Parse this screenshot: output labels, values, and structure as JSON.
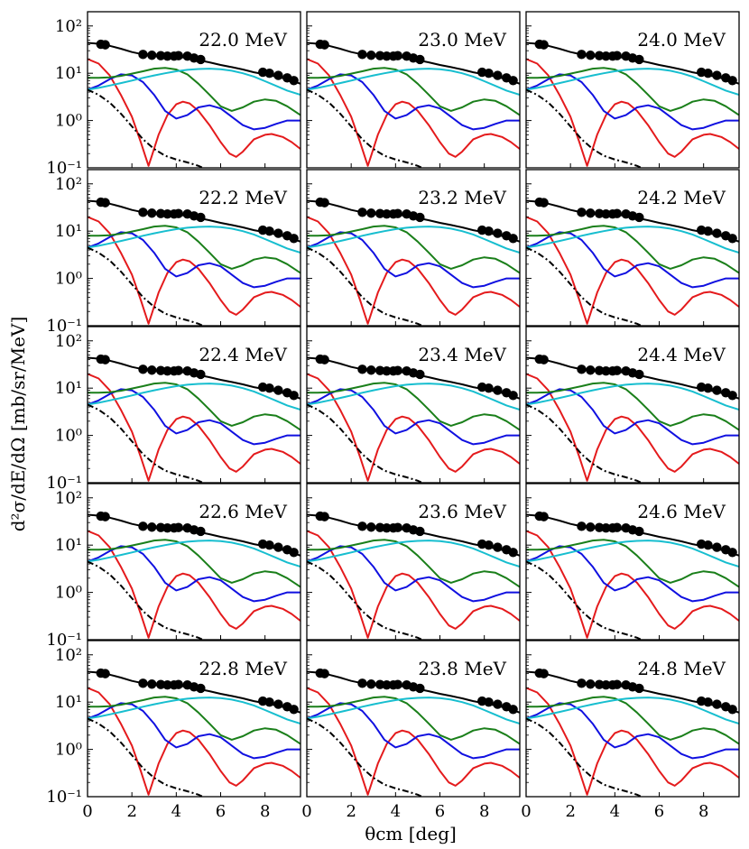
{
  "figure": {
    "ylabel": "d²σ/dE/dΩ [mb/sr/MeV]",
    "xlabel": "θcm [deg]"
  },
  "chart_data": {
    "type": "line",
    "layout": "grid of panels, 5 rows × 3 columns, shared axes",
    "x_range": [
      0,
      9.6
    ],
    "y_range": [
      0.1,
      200
    ],
    "y_scale": "log",
    "x_ticks": [
      0,
      2,
      4,
      6,
      8
    ],
    "y_ticks": [
      {
        "value": 0.1,
        "label": "10⁻¹"
      },
      {
        "value": 1,
        "label": "10⁰"
      },
      {
        "value": 10,
        "label": "10¹"
      },
      {
        "value": 100,
        "label": "10²"
      }
    ],
    "grid": false,
    "legend": "none",
    "series_colors": {
      "sum": "#000000",
      "red": "#e41a1c",
      "blue": "#1010e0",
      "green": "#1a7f1a",
      "cyan": "#17becf",
      "dash_dot": "#000000",
      "data_points": "#000000"
    },
    "panels": [
      {
        "label": "22.0 MeV",
        "row": 0,
        "col": 0
      },
      {
        "label": "23.0 MeV",
        "row": 0,
        "col": 1
      },
      {
        "label": "24.0 MeV",
        "row": 0,
        "col": 2
      },
      {
        "label": "22.2 MeV",
        "row": 1,
        "col": 0
      },
      {
        "label": "23.2 MeV",
        "row": 1,
        "col": 1
      },
      {
        "label": "24.2 MeV",
        "row": 1,
        "col": 2
      },
      {
        "label": "22.4 MeV",
        "row": 2,
        "col": 0
      },
      {
        "label": "23.4 MeV",
        "row": 2,
        "col": 1
      },
      {
        "label": "24.4 MeV",
        "row": 2,
        "col": 2
      },
      {
        "label": "22.6 MeV",
        "row": 3,
        "col": 0
      },
      {
        "label": "23.6 MeV",
        "row": 3,
        "col": 1
      },
      {
        "label": "24.6 MeV",
        "row": 3,
        "col": 2
      },
      {
        "label": "22.8 MeV",
        "row": 4,
        "col": 0
      },
      {
        "label": "23.8 MeV",
        "row": 4,
        "col": 1
      },
      {
        "label": "24.8 MeV",
        "row": 4,
        "col": 2
      }
    ],
    "series": [
      {
        "key": "sum",
        "style": "solid",
        "x": [
          0,
          0.5,
          1,
          1.5,
          2,
          2.5,
          3,
          3.5,
          4,
          4.5,
          5,
          5.5,
          6,
          6.5,
          7,
          7.5,
          8,
          8.5,
          9,
          9.6
        ],
        "y": [
          44,
          42,
          38,
          33,
          28,
          25,
          23.5,
          23,
          22.5,
          21,
          19,
          17,
          15,
          13.5,
          12,
          10.5,
          9.5,
          8.5,
          7.5,
          6
        ]
      },
      {
        "key": "red",
        "style": "solid",
        "x": [
          0,
          0.5,
          1,
          1.5,
          2,
          2.4,
          2.6,
          2.75,
          2.9,
          3.2,
          3.6,
          4.0,
          4.3,
          4.6,
          5.0,
          5.5,
          6.0,
          6.4,
          6.7,
          7.0,
          7.5,
          8.0,
          8.3,
          8.8,
          9.2,
          9.6
        ],
        "y": [
          20,
          16,
          9,
          3.5,
          1.2,
          0.35,
          0.18,
          0.11,
          0.18,
          0.5,
          1.3,
          2.2,
          2.5,
          2.3,
          1.6,
          0.8,
          0.35,
          0.2,
          0.17,
          0.22,
          0.4,
          0.5,
          0.52,
          0.45,
          0.35,
          0.25
        ]
      },
      {
        "key": "blue",
        "style": "solid",
        "x": [
          0,
          0.5,
          1,
          1.5,
          2,
          2.5,
          3,
          3.5,
          4,
          4.5,
          5,
          5.5,
          6,
          6.5,
          7,
          7.5,
          8,
          8.5,
          9,
          9.6
        ],
        "y": [
          4.5,
          5.5,
          7.5,
          9.5,
          9,
          6.5,
          3.5,
          1.6,
          1.1,
          1.3,
          1.9,
          2.1,
          1.8,
          1.2,
          0.8,
          0.65,
          0.7,
          0.85,
          1.0,
          1.0
        ]
      },
      {
        "key": "green",
        "style": "solid",
        "x": [
          0,
          0.5,
          1,
          1.5,
          2,
          2.5,
          3,
          3.5,
          4,
          4.5,
          5,
          5.5,
          6,
          6.5,
          7,
          7.5,
          8,
          8.5,
          9,
          9.6
        ],
        "y": [
          8,
          8,
          8.2,
          8.8,
          9.8,
          11,
          12.5,
          13,
          12,
          9.5,
          6,
          3.5,
          2,
          1.6,
          1.9,
          2.5,
          2.8,
          2.6,
          2.0,
          1.3
        ]
      },
      {
        "key": "cyan",
        "style": "solid",
        "x": [
          0,
          0.5,
          1,
          1.5,
          2,
          2.5,
          3,
          3.5,
          4,
          4.5,
          5,
          5.5,
          6,
          6.5,
          7,
          7.5,
          8,
          8.5,
          9,
          9.6
        ],
        "y": [
          4.5,
          4.9,
          5.5,
          6.2,
          7,
          8,
          9,
          10,
          11,
          11.8,
          12.3,
          12.5,
          12.2,
          11.3,
          10,
          8.5,
          6.8,
          5.4,
          4.3,
          3.5
        ]
      },
      {
        "key": "dash_dot",
        "style": "dashdot",
        "x": [
          0,
          0.5,
          1,
          1.5,
          2,
          2.5,
          3,
          3.5,
          4,
          4.5,
          5,
          5.2
        ],
        "y": [
          4.5,
          3.5,
          2.4,
          1.4,
          0.75,
          0.4,
          0.25,
          0.18,
          0.15,
          0.13,
          0.11,
          0.1
        ]
      },
      {
        "key": "data_points",
        "style": "markers",
        "x": [
          0.6,
          0.8,
          2.5,
          2.9,
          3.3,
          3.6,
          3.9,
          4.1,
          4.5,
          4.8,
          5.1,
          7.9,
          8.2,
          8.6,
          9.0,
          9.3
        ],
        "y": [
          41,
          40,
          25,
          24,
          23.5,
          23,
          23,
          23.5,
          23,
          21,
          19.5,
          10.5,
          10,
          9,
          8,
          7
        ]
      }
    ]
  }
}
